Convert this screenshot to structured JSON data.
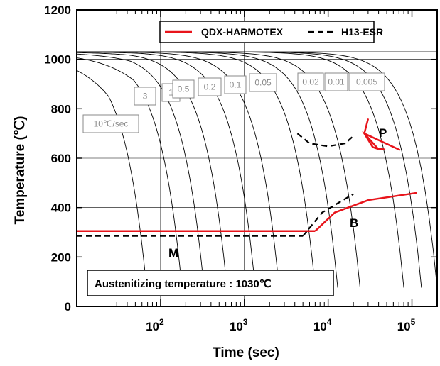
{
  "chart_data": {
    "type": "line",
    "xscale": "log",
    "xlim": [
      10,
      200000
    ],
    "ylim": [
      0,
      1200
    ],
    "xlabel": "Time (sec)",
    "ylabel": "Temperature (℃)",
    "x_ticks": [
      {
        "base": "10",
        "exp": "2"
      },
      {
        "base": "10",
        "exp": "3"
      },
      {
        "base": "10",
        "exp": "4"
      },
      {
        "base": "10",
        "exp": "5"
      }
    ],
    "y_ticks": [
      "0",
      "200",
      "400",
      "600",
      "800",
      "1000",
      "1200"
    ],
    "grid": true,
    "legend_position": "top-right",
    "series": [
      {
        "name": "QDX-HARMOTEX",
        "color": "#e8141b",
        "style": "solid"
      },
      {
        "name": "H13-ESR",
        "color": "#000000",
        "style": "dashed"
      }
    ],
    "transformation_lines": {
      "QDX-HARMOTEX": {
        "Ms": {
          "x": [
            10,
            7000
          ],
          "y": [
            305,
            305
          ]
        },
        "bainite": {
          "x": [
            7000,
            12000,
            30000,
            115000
          ],
          "y": [
            305,
            380,
            430,
            460
          ]
        },
        "pearlite": {
          "x": [
            30000,
            27000,
            39000,
            48000,
            41000,
            34000,
            27000,
            72000
          ],
          "y": [
            760,
            700,
            640,
            635,
            635,
            645,
            700,
            633
          ]
        }
      },
      "H13-ESR": {
        "Ms": {
          "x": [
            10,
            5000
          ],
          "y": [
            285,
            285
          ]
        },
        "bainite": {
          "x": [
            5000,
            8500,
            20000
          ],
          "y": [
            285,
            380,
            455
          ]
        },
        "pearlite": {
          "x": [
            4300,
            6000,
            10000,
            16000,
            20000
          ],
          "y": [
            700,
            660,
            648,
            660,
            690
          ]
        }
      }
    },
    "cooling_rate_labels": [
      "10℃/sec",
      "3",
      "1",
      "0.5",
      "0.2",
      "0.1",
      "0.05",
      "0.02",
      "0.01",
      "0.005"
    ],
    "regions": [
      "P",
      "B",
      "M"
    ],
    "annotation": "Austenitizing temperature : 1030℃",
    "austenitizing_temperature": 1030
  }
}
